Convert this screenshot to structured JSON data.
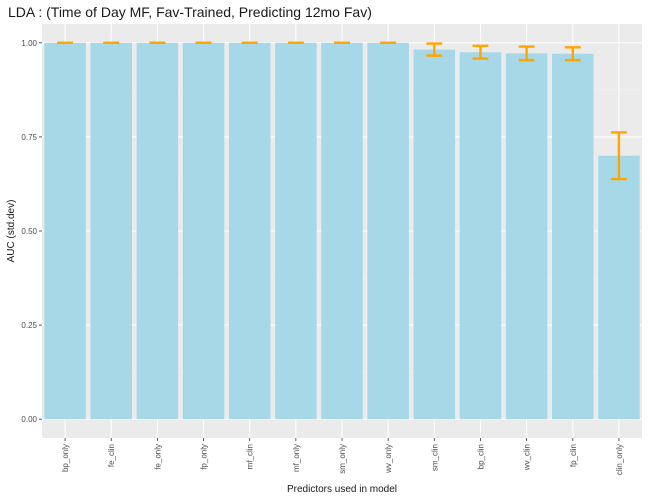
{
  "chart_data": {
    "type": "bar",
    "title": "LDA : (Time of Day MF, Fav-Trained, Predicting 12mo Fav)",
    "xlabel": "Predictors used in model",
    "ylabel": "AUC (std.dev)",
    "categories": [
      "bp_only",
      "fe_clin",
      "fe_only",
      "fp_only",
      "mf_clin",
      "mf_only",
      "sm_only",
      "wv_only",
      "sm_clin",
      "bp_clin",
      "wv_clin",
      "fp_clin",
      "clin_only"
    ],
    "values": [
      1.0,
      1.0,
      1.0,
      1.0,
      1.0,
      1.0,
      1.0,
      1.0,
      0.982,
      0.975,
      0.972,
      0.971,
      0.7
    ],
    "error": [
      0.0,
      0.0,
      0.0,
      0.0,
      0.0,
      0.0,
      0.0,
      0.0,
      0.016,
      0.017,
      0.018,
      0.017,
      0.062
    ],
    "ylim": [
      -0.05,
      1.05
    ],
    "yticks": [
      0.0,
      0.25,
      0.5,
      0.75,
      1.0
    ],
    "ytick_labels": [
      "0.00",
      "0.25",
      "0.50",
      "0.75",
      "1.00"
    ],
    "grid": true,
    "colors": {
      "panel_background": "#EBEBEB",
      "grid_major": "#FFFFFF",
      "grid_minor": "#F3F3F3",
      "bar_fill": "#A6D8E8",
      "error_bar": "#FFA500",
      "tick_mark": "#333333"
    }
  }
}
